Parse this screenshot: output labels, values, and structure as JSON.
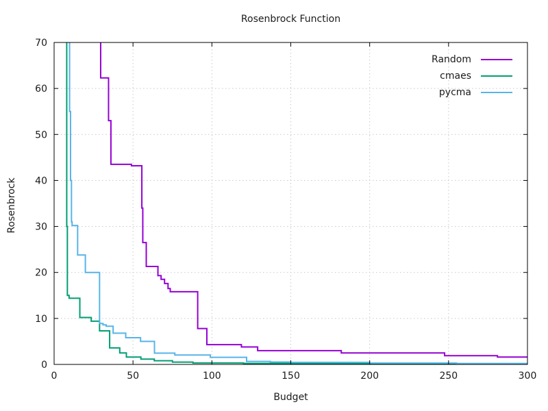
{
  "figure": {
    "title": "Rosenbrock Function",
    "xlabel": "Budget",
    "ylabel": "Rosenbrock"
  },
  "chart_data": {
    "type": "line",
    "title": "Rosenbrock Function",
    "xlabel": "Budget",
    "ylabel": "Rosenbrock",
    "xlim": [
      0,
      300
    ],
    "ylim": [
      0,
      70
    ],
    "xticks": [
      0,
      50,
      100,
      150,
      200,
      250,
      300
    ],
    "yticks": [
      0,
      10,
      20,
      30,
      40,
      50,
      60,
      70
    ],
    "grid": true,
    "grid_style": "dotted",
    "legend_position": "top-right-inside",
    "step_mode": "post",
    "series": [
      {
        "name": "Random",
        "color": "#9400d3",
        "points": [
          [
            29.5,
            75
          ],
          [
            29.5,
            62.3
          ],
          [
            34.5,
            53.0
          ],
          [
            36.0,
            43.5
          ],
          [
            49.0,
            43.2
          ],
          [
            55.6,
            34.0
          ],
          [
            56.2,
            26.5
          ],
          [
            58.4,
            21.3
          ],
          [
            65.8,
            19.3
          ],
          [
            67.8,
            18.5
          ],
          [
            70.0,
            17.6
          ],
          [
            72.2,
            16.5
          ],
          [
            73.6,
            15.8
          ],
          [
            91.0,
            7.8
          ],
          [
            96.8,
            4.3
          ],
          [
            118.7,
            3.8
          ],
          [
            129.0,
            3.0
          ],
          [
            182.0,
            2.5
          ],
          [
            247.5,
            1.9
          ],
          [
            281.0,
            1.6
          ]
        ]
      },
      {
        "name": "cmaes",
        "color": "#009e73",
        "points": [
          [
            7.5,
            75
          ],
          [
            8.0,
            30.0
          ],
          [
            8.4,
            15.0
          ],
          [
            9.5,
            14.4
          ],
          [
            16.3,
            10.2
          ],
          [
            23.5,
            9.4
          ],
          [
            28.8,
            7.3
          ],
          [
            35.2,
            3.6
          ],
          [
            41.6,
            2.5
          ],
          [
            45.8,
            1.6
          ],
          [
            55.0,
            1.15
          ],
          [
            63.5,
            0.8
          ],
          [
            75.0,
            0.5
          ],
          [
            88.0,
            0.32
          ],
          [
            120.0,
            0.22
          ],
          [
            200.0,
            0.12
          ]
        ]
      },
      {
        "name": "pycma",
        "color": "#56b4e9",
        "points": [
          [
            9.3,
            75
          ],
          [
            9.8,
            55.0
          ],
          [
            10.4,
            40.0
          ],
          [
            11.0,
            31.0
          ],
          [
            11.4,
            30.2
          ],
          [
            14.9,
            23.8
          ],
          [
            19.8,
            20.0
          ],
          [
            28.8,
            8.9
          ],
          [
            31.0,
            8.6
          ],
          [
            33.0,
            8.3
          ],
          [
            37.4,
            6.8
          ],
          [
            45.4,
            5.8
          ],
          [
            54.8,
            5.0
          ],
          [
            63.6,
            2.45
          ],
          [
            76.5,
            2.05
          ],
          [
            99.0,
            1.55
          ],
          [
            122.0,
            0.65
          ],
          [
            137.0,
            0.52
          ],
          [
            150.0,
            0.45
          ],
          [
            200.0,
            0.3
          ],
          [
            255.0,
            0.2
          ]
        ]
      }
    ]
  }
}
